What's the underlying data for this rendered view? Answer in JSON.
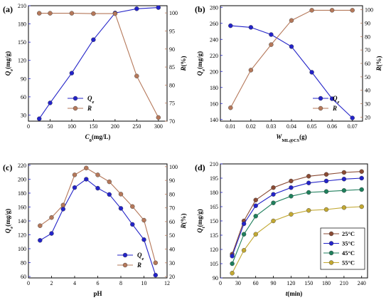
{
  "chart_data": [
    {
      "panel": "(a)",
      "type": "line",
      "xlabel": "C0(mg/L)",
      "ylabel_left": "Qe(mg/g)",
      "ylabel_right": "R(%)",
      "xlim": [
        0,
        320
      ],
      "ylim": [
        20,
        210
      ],
      "ylim_right": [
        70,
        102
      ],
      "x_ticks": [
        0,
        50,
        100,
        150,
        200,
        250,
        300
      ],
      "y_ticks": [
        30,
        60,
        90,
        120,
        150,
        180,
        210
      ],
      "y2_ticks": [
        70,
        75,
        80,
        85,
        90,
        95,
        100
      ],
      "x": [
        25,
        50,
        100,
        150,
        200,
        250,
        300
      ],
      "series": [
        {
          "name": "Qe",
          "axis": "left",
          "color": "#2323c8",
          "values": [
            24,
            50,
            99,
            154,
            198,
            205,
            207
          ]
        },
        {
          "name": "R",
          "axis": "right",
          "color": "#b5785a",
          "values": [
            99.9,
            99.9,
            99.9,
            99.8,
            99.8,
            82.5,
            71.0
          ]
        }
      ],
      "legend": "bottom-left"
    },
    {
      "panel": "(b)",
      "type": "line",
      "xlabel": "WML@CS(g)",
      "ylabel_left": "Qe(mg/g)",
      "ylabel_right": "R(%)",
      "xlim": [
        0.005,
        0.075
      ],
      "ylim": [
        138,
        282
      ],
      "ylim_right": [
        17,
        103
      ],
      "x_ticks": [
        "0.01",
        "0.02",
        "0.03",
        "0.04",
        "0.05",
        "0.06",
        "0.07"
      ],
      "y_ticks": [
        140,
        160,
        180,
        200,
        220,
        240,
        260,
        280
      ],
      "y2_ticks": [
        20,
        30,
        40,
        50,
        60,
        70,
        80,
        90,
        100
      ],
      "x": [
        0.01,
        0.02,
        0.03,
        0.04,
        0.05,
        0.06,
        0.07
      ],
      "series": [
        {
          "name": "Qe",
          "axis": "left",
          "color": "#2323c8",
          "values": [
            257,
            255,
            246,
            231,
            199,
            166,
            142
          ]
        },
        {
          "name": "R",
          "axis": "right",
          "color": "#b5785a",
          "values": [
            27,
            55,
            74,
            92,
            99.6,
            99.6,
            99.6
          ]
        }
      ],
      "legend": "bottom-right"
    },
    {
      "panel": "(c)",
      "type": "line",
      "xlabel": "pH",
      "ylabel_left": "Qe(mg/g)",
      "ylabel_right": "R(%)",
      "xlim": [
        0,
        12
      ],
      "ylim": [
        58,
        222
      ],
      "ylim_right": [
        19,
        102
      ],
      "x_ticks": [
        0,
        2,
        4,
        6,
        8,
        10,
        12
      ],
      "y_ticks": [
        60,
        80,
        100,
        120,
        140,
        160,
        180,
        200,
        220
      ],
      "y2_ticks": [
        20,
        30,
        40,
        50,
        60,
        70,
        80,
        90,
        100
      ],
      "x": [
        1,
        2,
        3,
        4,
        5,
        6,
        7,
        8,
        9,
        10,
        11
      ],
      "series": [
        {
          "name": "Qe",
          "axis": "left",
          "color": "#2323c8",
          "values": [
            112,
            122,
            157,
            188,
            200,
            187,
            178,
            158,
            135,
            113,
            62
          ]
        },
        {
          "name": "R",
          "axis": "right",
          "color": "#b5785a",
          "values": [
            57,
            63,
            72,
            94,
            99,
            94,
            89,
            80,
            71,
            61,
            30
          ]
        }
      ],
      "legend": "bottom-right"
    },
    {
      "panel": "(d)",
      "type": "line",
      "xlabel": "t(min)",
      "ylabel": "Qt(mg/g)",
      "xlim": [
        0,
        250
      ],
      "ylim": [
        90,
        210
      ],
      "x_ticks": [
        0,
        30,
        60,
        90,
        120,
        150,
        180,
        210,
        240
      ],
      "y_ticks": [
        90,
        105,
        120,
        135,
        150,
        165,
        180,
        195,
        210
      ],
      "x": [
        20,
        40,
        60,
        90,
        120,
        150,
        180,
        210,
        240
      ],
      "series": [
        {
          "name": "25°C",
          "color": "#8a4a33",
          "values": [
            115,
            150,
            172,
            185,
            192,
            197,
            199,
            201,
            202
          ]
        },
        {
          "name": "35°C",
          "color": "#2323c8",
          "values": [
            113,
            147,
            166,
            178,
            185,
            190,
            192,
            194,
            195
          ]
        },
        {
          "name": "45°C",
          "color": "#1f7f5c",
          "values": [
            105,
            136,
            155,
            169,
            176,
            180,
            181,
            182,
            183
          ]
        },
        {
          "name": "55°C",
          "color": "#c2a832",
          "values": [
            95,
            119,
            136,
            150,
            157,
            161,
            162,
            164,
            165
          ]
        }
      ],
      "legend": "bottom-right"
    }
  ]
}
